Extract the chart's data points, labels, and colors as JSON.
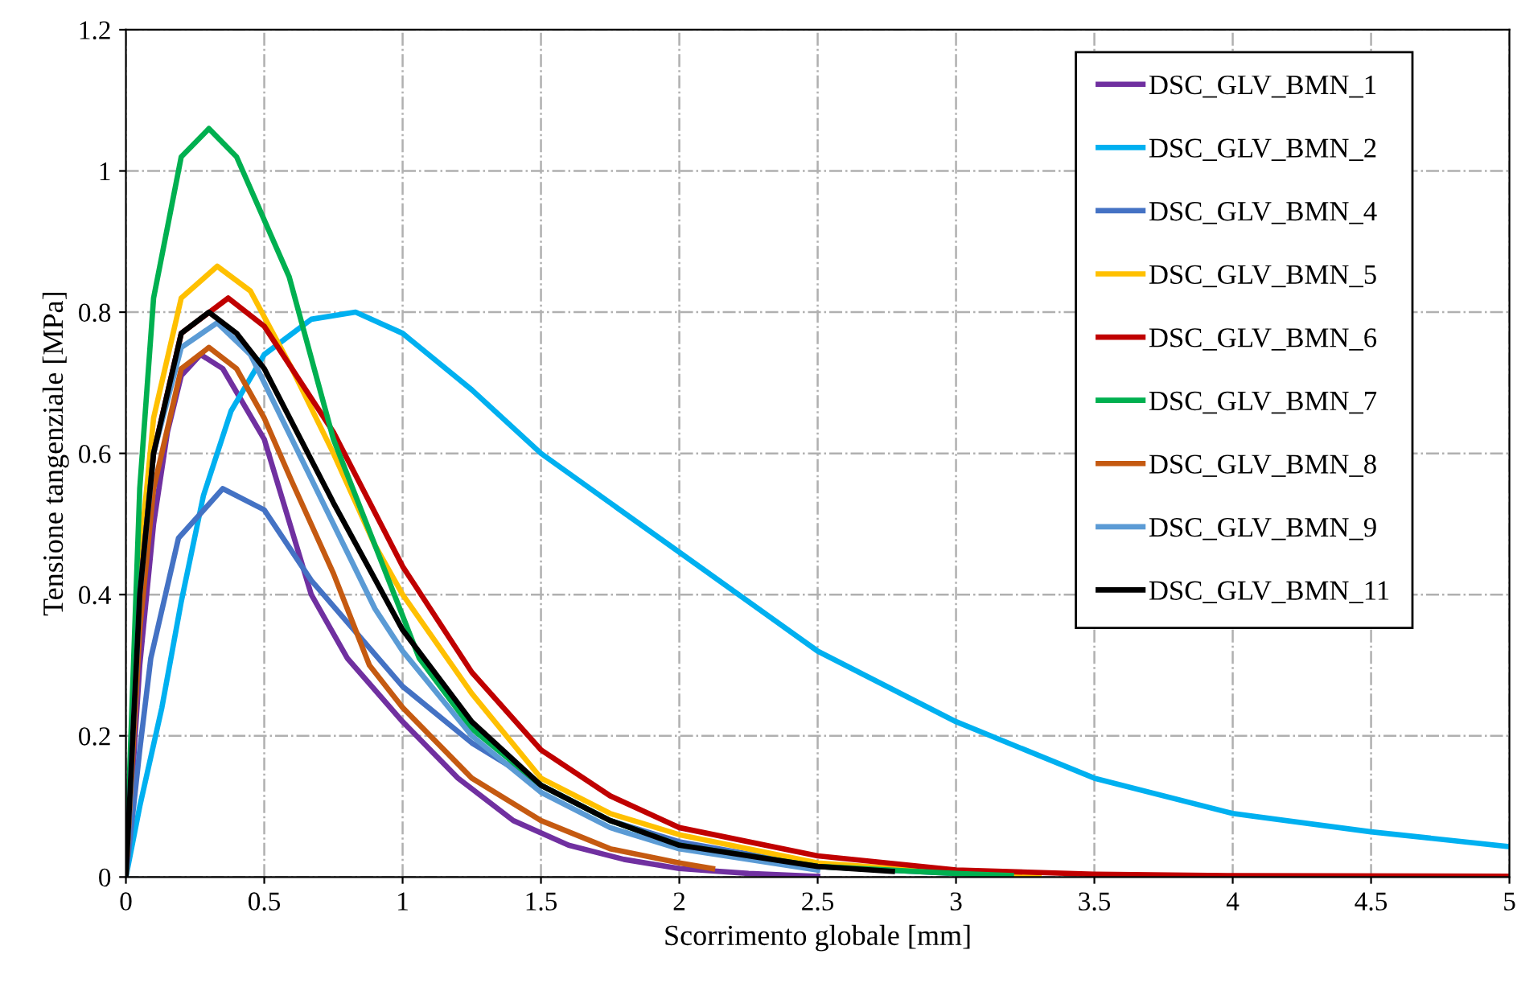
{
  "chart_data": {
    "type": "line",
    "xlabel": "Scorrimento globale [mm]",
    "ylabel": "Tensione tangenziale [MPa]",
    "xlim": [
      0,
      5
    ],
    "ylim": [
      0,
      1.2
    ],
    "xticks": [
      0,
      0.5,
      1,
      1.5,
      2,
      2.5,
      3,
      3.5,
      4,
      4.5,
      5
    ],
    "yticks": [
      0,
      0.2,
      0.4,
      0.6,
      0.8,
      1,
      1.2
    ],
    "grid": true,
    "legend": "top right",
    "line_style": "solid",
    "marker": "none",
    "series": [
      {
        "name": "DSC_GLV_BMN_1",
        "color": "#7030a0",
        "x": [
          0,
          0.05,
          0.1,
          0.15,
          0.2,
          0.27,
          0.35,
          0.5,
          0.67,
          0.8,
          1.0,
          1.2,
          1.4,
          1.6,
          1.8,
          2.0,
          2.25,
          2.5
        ],
        "values": [
          0,
          0.3,
          0.5,
          0.63,
          0.71,
          0.74,
          0.72,
          0.62,
          0.4,
          0.31,
          0.22,
          0.14,
          0.08,
          0.045,
          0.025,
          0.012,
          0.005,
          0.001
        ]
      },
      {
        "name": "DSC_GLV_BMN_2",
        "color": "#00b0f0",
        "x": [
          0,
          0.05,
          0.13,
          0.2,
          0.28,
          0.38,
          0.5,
          0.67,
          0.83,
          1.0,
          1.25,
          1.5,
          2.0,
          2.5,
          3.0,
          3.5,
          4.0,
          4.5,
          5.0
        ],
        "values": [
          0,
          0.1,
          0.24,
          0.39,
          0.54,
          0.66,
          0.74,
          0.79,
          0.8,
          0.77,
          0.69,
          0.6,
          0.46,
          0.32,
          0.22,
          0.14,
          0.09,
          0.064,
          0.043
        ]
      },
      {
        "name": "DSC_GLV_BMN_4",
        "color": "#4472c4",
        "x": [
          0,
          0.05,
          0.09,
          0.19,
          0.35,
          0.5,
          0.67,
          1.0,
          1.25,
          1.5,
          1.75,
          2.0,
          2.5,
          3.0
        ],
        "values": [
          0,
          0.18,
          0.31,
          0.48,
          0.55,
          0.52,
          0.42,
          0.27,
          0.19,
          0.13,
          0.08,
          0.05,
          0.015,
          0.005
        ]
      },
      {
        "name": "DSC_GLV_BMN_5",
        "color": "#ffc000",
        "x": [
          0,
          0.05,
          0.1,
          0.2,
          0.33,
          0.45,
          0.6,
          0.75,
          0.9,
          1.0,
          1.25,
          1.5,
          1.75,
          2.0,
          2.5,
          3.0,
          3.3
        ],
        "values": [
          0,
          0.45,
          0.65,
          0.82,
          0.865,
          0.83,
          0.72,
          0.6,
          0.47,
          0.4,
          0.26,
          0.14,
          0.09,
          0.06,
          0.02,
          0.006,
          0.002
        ]
      },
      {
        "name": "DSC_GLV_BMN_6",
        "color": "#c00000",
        "x": [
          0,
          0.05,
          0.1,
          0.2,
          0.37,
          0.5,
          0.75,
          1.0,
          1.25,
          1.5,
          1.75,
          2.0,
          2.5,
          3.0,
          3.5,
          4.0,
          5.0
        ],
        "values": [
          0,
          0.4,
          0.6,
          0.77,
          0.82,
          0.78,
          0.63,
          0.44,
          0.29,
          0.18,
          0.115,
          0.07,
          0.03,
          0.01,
          0.004,
          0.002,
          0.001
        ]
      },
      {
        "name": "DSC_GLV_BMN_7",
        "color": "#00b050",
        "x": [
          0,
          0.05,
          0.1,
          0.2,
          0.3,
          0.4,
          0.59,
          0.75,
          0.9,
          1.06,
          1.25,
          1.5,
          1.75,
          2.0,
          2.5,
          3.0,
          3.2
        ],
        "values": [
          0,
          0.55,
          0.82,
          1.02,
          1.06,
          1.02,
          0.85,
          0.62,
          0.47,
          0.31,
          0.21,
          0.13,
          0.08,
          0.045,
          0.015,
          0.005,
          0.002
        ]
      },
      {
        "name": "DSC_GLV_BMN_8",
        "color": "#c55a11",
        "x": [
          0,
          0.05,
          0.1,
          0.2,
          0.3,
          0.4,
          0.5,
          0.6,
          0.75,
          0.88,
          1.0,
          1.25,
          1.5,
          1.75,
          2.0,
          2.12
        ],
        "values": [
          0,
          0.35,
          0.55,
          0.72,
          0.75,
          0.72,
          0.65,
          0.56,
          0.43,
          0.3,
          0.24,
          0.14,
          0.08,
          0.04,
          0.02,
          0.012
        ]
      },
      {
        "name": "DSC_GLV_BMN_9",
        "color": "#5b9bd5",
        "x": [
          0,
          0.05,
          0.1,
          0.2,
          0.33,
          0.45,
          0.6,
          0.75,
          0.9,
          1.0,
          1.25,
          1.5,
          1.75,
          2.0,
          2.5
        ],
        "values": [
          0,
          0.4,
          0.6,
          0.75,
          0.785,
          0.74,
          0.62,
          0.5,
          0.38,
          0.32,
          0.2,
          0.12,
          0.07,
          0.04,
          0.01
        ]
      },
      {
        "name": "DSC_GLV_BMN_11",
        "color": "#000000",
        "x": [
          0,
          0.05,
          0.1,
          0.2,
          0.3,
          0.4,
          0.5,
          0.75,
          1.0,
          1.25,
          1.5,
          1.75,
          2.0,
          2.5,
          2.77
        ],
        "values": [
          0,
          0.4,
          0.6,
          0.77,
          0.8,
          0.77,
          0.72,
          0.53,
          0.35,
          0.22,
          0.13,
          0.08,
          0.045,
          0.015,
          0.008
        ]
      }
    ]
  }
}
